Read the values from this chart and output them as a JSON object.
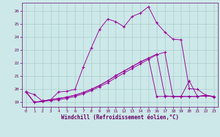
{
  "xlabel": "Windchill (Refroidissement éolien,°C)",
  "bg_color": "#cce8e8",
  "grid_color": "#aacccc",
  "line_color": "#990099",
  "tick_color": "#660066",
  "xlim": [
    -0.5,
    23.5
  ],
  "ylim": [
    18.65,
    26.65
  ],
  "xticks": [
    0,
    1,
    2,
    3,
    4,
    5,
    6,
    7,
    8,
    9,
    10,
    11,
    12,
    13,
    14,
    15,
    16,
    17,
    18,
    19,
    20,
    21,
    22,
    23
  ],
  "yticks": [
    19,
    20,
    21,
    22,
    23,
    24,
    25,
    26
  ],
  "lines": [
    [
      19.8,
      19.6,
      19.1,
      19.2,
      19.8,
      19.85,
      20.0,
      21.7,
      23.2,
      24.6,
      25.4,
      25.2,
      24.8,
      25.6,
      25.85,
      26.35,
      25.1,
      24.4,
      23.85,
      23.8,
      20.05,
      20.0,
      19.55,
      19.4
    ],
    [
      19.8,
      19.0,
      19.1,
      19.2,
      19.3,
      19.4,
      19.55,
      19.75,
      20.0,
      20.3,
      20.65,
      21.05,
      21.4,
      21.75,
      22.1,
      22.4,
      22.7,
      19.5,
      19.45,
      19.45,
      19.45,
      19.45,
      19.5,
      19.45
    ],
    [
      19.8,
      19.0,
      19.1,
      19.2,
      19.3,
      19.4,
      19.55,
      19.75,
      20.0,
      20.3,
      20.65,
      21.05,
      21.4,
      21.75,
      22.1,
      22.4,
      19.45,
      19.45,
      19.45,
      19.45,
      20.65,
      19.45,
      19.55,
      19.45
    ],
    [
      19.8,
      19.0,
      19.05,
      19.15,
      19.2,
      19.3,
      19.45,
      19.65,
      19.9,
      20.2,
      20.5,
      20.9,
      21.25,
      21.6,
      21.95,
      22.3,
      22.65,
      22.85,
      19.45,
      19.45,
      19.45,
      19.45,
      19.5,
      19.45
    ]
  ]
}
